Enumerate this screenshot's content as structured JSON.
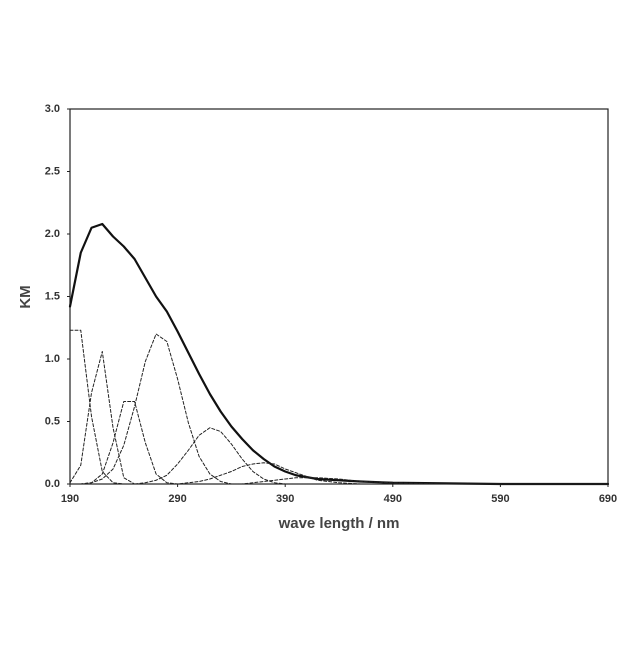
{
  "chart_data": {
    "type": "line",
    "x_label": "wave length / nm",
    "y_label": "KM",
    "x": [
      190,
      200,
      210,
      220,
      230,
      240,
      250,
      260,
      270,
      280,
      290,
      300,
      310,
      320,
      330,
      340,
      350,
      360,
      370,
      380,
      390,
      400,
      420,
      440,
      460,
      490,
      540,
      590,
      690
    ],
    "series": [
      {
        "color": "#111111",
        "dashed": false,
        "values": [
          1.42,
          1.85,
          2.05,
          2.08,
          1.98,
          1.9,
          1.8,
          1.65,
          1.5,
          1.38,
          1.22,
          1.05,
          0.88,
          0.72,
          0.58,
          0.46,
          0.36,
          0.27,
          0.2,
          0.14,
          0.1,
          0.07,
          0.04,
          0.03,
          0.02,
          0.01,
          0.005,
          0,
          0
        ]
      },
      {
        "color": "#222222",
        "dashed": true,
        "values": [
          1.23,
          1.23,
          0.54,
          0.1,
          0.01,
          0,
          0,
          0,
          0,
          0,
          0,
          0,
          0,
          0,
          0,
          0,
          0,
          0,
          0,
          0,
          0,
          0,
          0,
          0,
          0,
          0,
          0,
          0,
          0
        ]
      },
      {
        "color": "#222222",
        "dashed": true,
        "values": [
          0.01,
          0.15,
          0.73,
          1.06,
          0.45,
          0.05,
          0,
          0,
          0,
          0,
          0,
          0,
          0,
          0,
          0,
          0,
          0,
          0,
          0,
          0,
          0,
          0,
          0,
          0,
          0,
          0,
          0,
          0,
          0
        ]
      },
      {
        "color": "#222222",
        "dashed": true,
        "values": [
          0,
          0,
          0.01,
          0.08,
          0.33,
          0.66,
          0.66,
          0.33,
          0.08,
          0.01,
          0,
          0,
          0,
          0,
          0,
          0,
          0,
          0,
          0,
          0,
          0,
          0,
          0,
          0,
          0,
          0,
          0,
          0,
          0
        ]
      },
      {
        "color": "#222222",
        "dashed": true,
        "values": [
          0,
          0,
          0.01,
          0.04,
          0.12,
          0.31,
          0.62,
          0.98,
          1.2,
          1.14,
          0.84,
          0.49,
          0.22,
          0.08,
          0.02,
          0,
          0,
          0,
          0,
          0,
          0,
          0,
          0,
          0,
          0,
          0,
          0,
          0,
          0
        ]
      },
      {
        "color": "#222222",
        "dashed": true,
        "values": [
          0,
          0,
          0,
          0,
          0,
          0,
          0,
          0.01,
          0.03,
          0.07,
          0.16,
          0.27,
          0.39,
          0.45,
          0.42,
          0.32,
          0.2,
          0.1,
          0.04,
          0.01,
          0,
          0,
          0,
          0,
          0,
          0,
          0,
          0,
          0
        ]
      },
      {
        "color": "#222222",
        "dashed": true,
        "values": [
          0,
          0,
          0,
          0,
          0,
          0,
          0,
          0,
          0,
          0,
          0,
          0.01,
          0.02,
          0.04,
          0.07,
          0.1,
          0.14,
          0.16,
          0.17,
          0.16,
          0.12,
          0.09,
          0.03,
          0.01,
          0,
          0,
          0,
          0,
          0
        ]
      },
      {
        "color": "#222222",
        "dashed": true,
        "values": [
          0,
          0,
          0,
          0,
          0,
          0,
          0,
          0,
          0,
          0,
          0,
          0,
          0,
          0,
          0,
          0,
          0,
          0.01,
          0.02,
          0.03,
          0.04,
          0.05,
          0.05,
          0.04,
          0.02,
          0.01,
          0,
          0,
          0
        ]
      }
    ],
    "xlim": [
      190,
      690
    ],
    "xticks": [
      190,
      290,
      390,
      490,
      590,
      690
    ],
    "ylim": [
      0,
      3
    ],
    "yticks": [
      {
        "value": 0,
        "label": "0.0"
      },
      {
        "value": 0.5,
        "label": "0.5"
      },
      {
        "value": 1,
        "label": "1.0"
      },
      {
        "value": 1.5,
        "label": "1.5"
      },
      {
        "value": 2,
        "label": "2.0"
      },
      {
        "value": 2.5,
        "label": "2.5"
      },
      {
        "value": 3,
        "label": "3.0"
      }
    ],
    "grid": false
  }
}
